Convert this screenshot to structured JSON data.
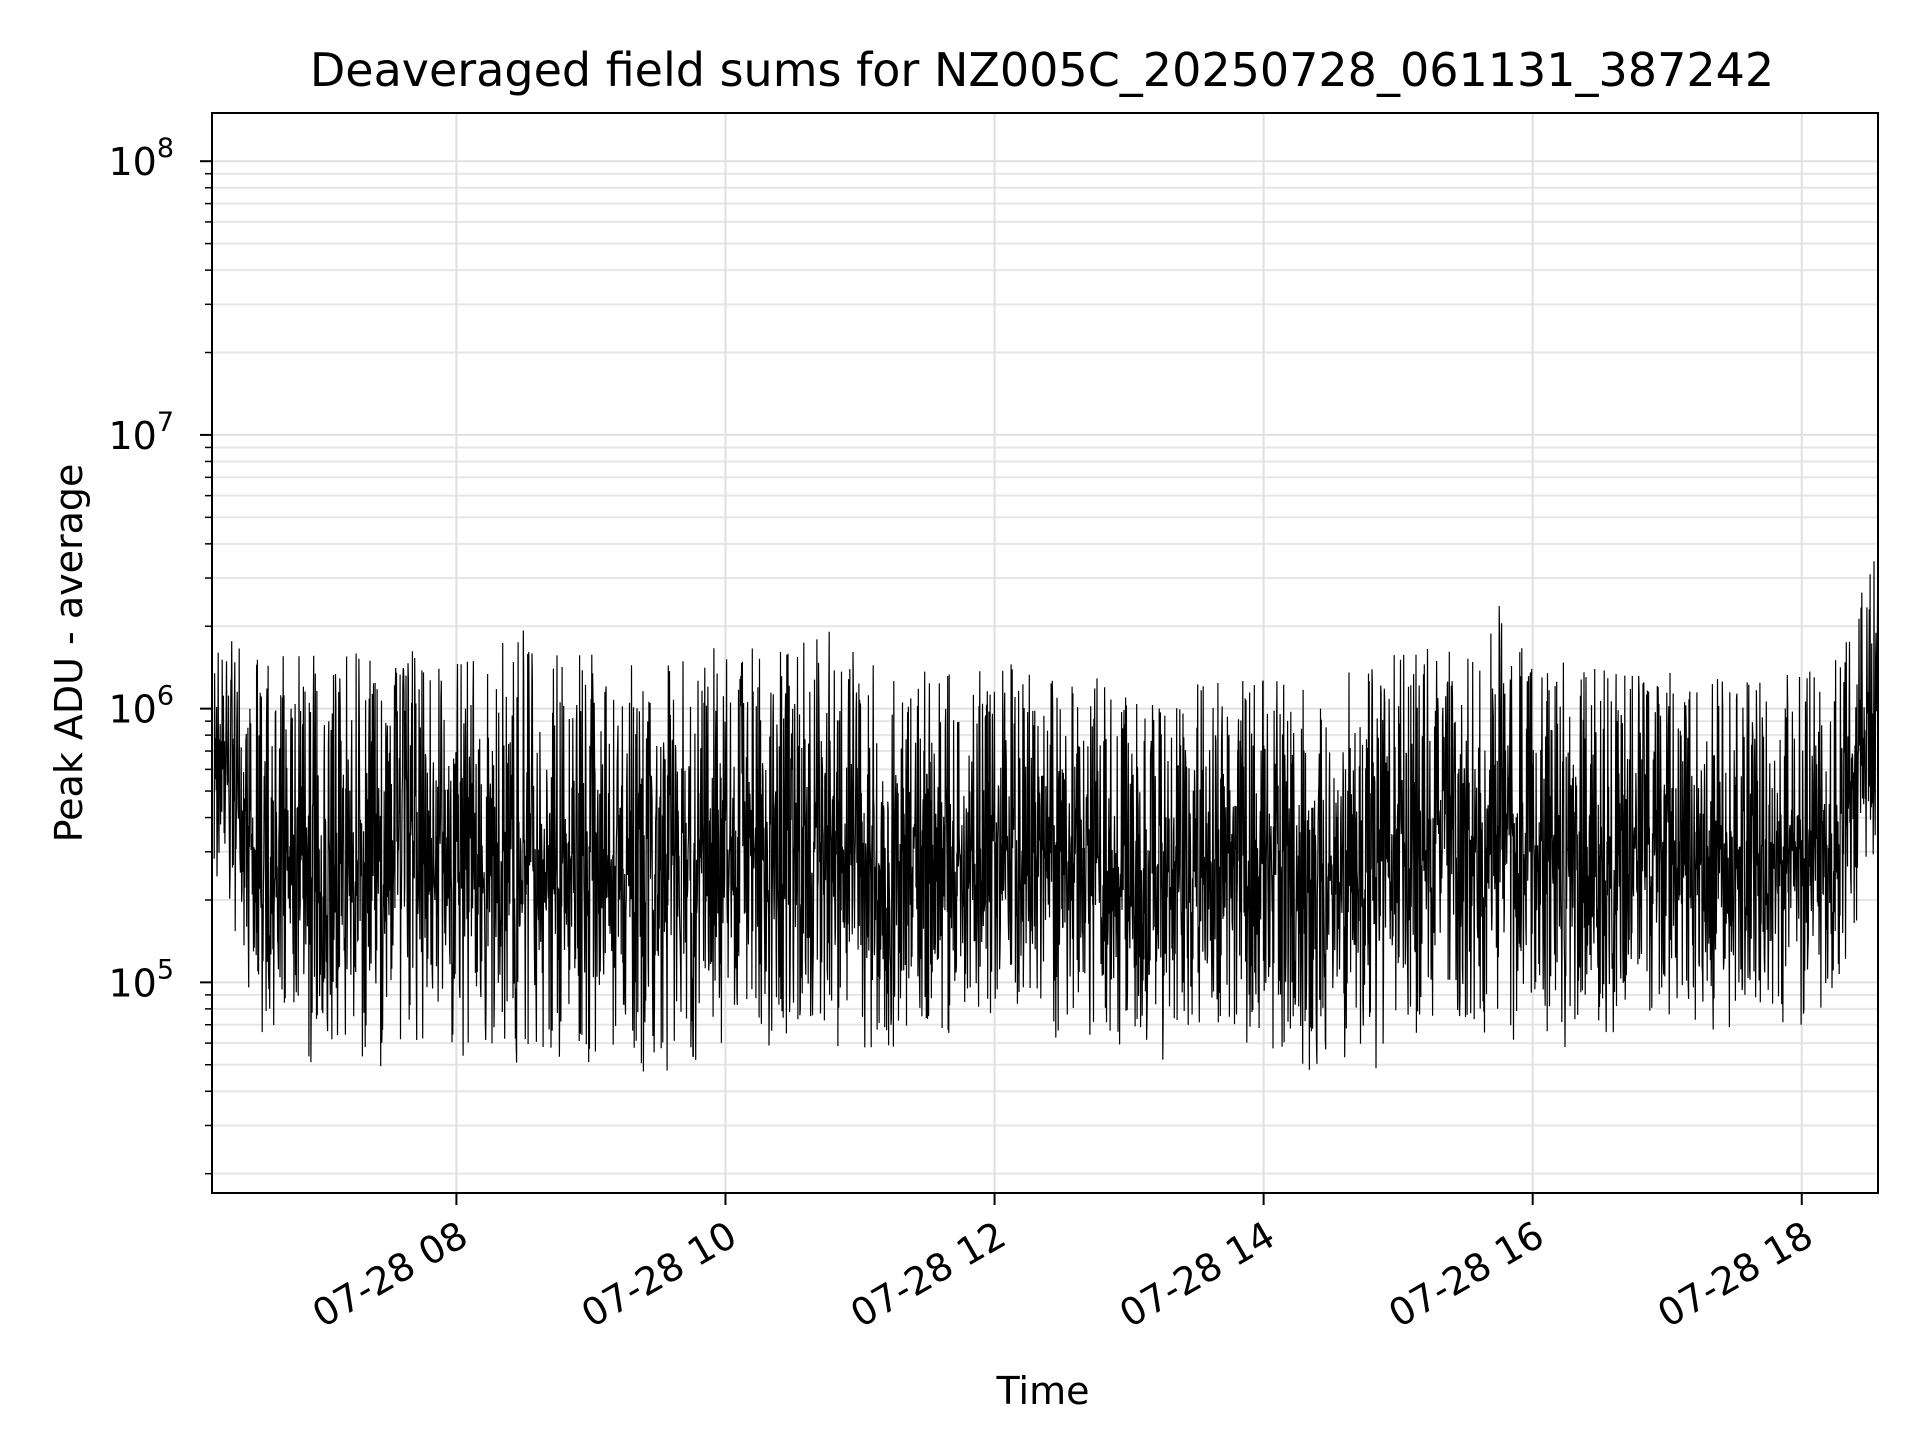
{
  "chart_data": {
    "type": "line",
    "title": "Deaveraged field sums for NZ005C_20250728_061131_387242",
    "xlabel": "Time",
    "ylabel": "Peak ADU - average",
    "yscale": "log",
    "ylim": [
      17000,
      150000000
    ],
    "xlim": [
      "2025-07-28 06:11",
      "2025-07-28 18:34"
    ],
    "grid": true,
    "line_color": "#000000",
    "x_ticks": [
      {
        "value": "2025-07-28 08:00",
        "label": "07-28 08"
      },
      {
        "value": "2025-07-28 10:00",
        "label": "07-28 10"
      },
      {
        "value": "2025-07-28 12:00",
        "label": "07-28 12"
      },
      {
        "value": "2025-07-28 14:00",
        "label": "07-28 14"
      },
      {
        "value": "2025-07-28 16:00",
        "label": "07-28 16"
      },
      {
        "value": "2025-07-28 18:00",
        "label": "07-28 18"
      }
    ],
    "y_ticks": [
      {
        "value": 100000,
        "base": "10",
        "exp": "5"
      },
      {
        "value": 1000000,
        "base": "10",
        "exp": "6"
      },
      {
        "value": 10000000,
        "base": "10",
        "exp": "7"
      },
      {
        "value": 100000000,
        "base": "10",
        "exp": "8"
      }
    ],
    "series": [
      {
        "x": [
          "2025-07-28 06:12",
          "2025-07-28 06:30",
          "2025-07-28 06:45",
          "2025-07-28 07:00",
          "2025-07-28 07:15",
          "2025-07-28 07:30",
          "2025-07-28 07:45",
          "2025-07-28 08:00",
          "2025-07-28 08:15",
          "2025-07-28 08:30",
          "2025-07-28 08:45",
          "2025-07-28 09:00",
          "2025-07-28 09:15",
          "2025-07-28 09:30",
          "2025-07-28 09:45",
          "2025-07-28 10:00",
          "2025-07-28 10:15",
          "2025-07-28 10:30",
          "2025-07-28 10:45",
          "2025-07-28 11:00",
          "2025-07-28 11:15",
          "2025-07-28 11:30",
          "2025-07-28 11:45",
          "2025-07-28 12:00",
          "2025-07-28 12:15",
          "2025-07-28 12:30",
          "2025-07-28 12:45",
          "2025-07-28 13:00",
          "2025-07-28 13:15",
          "2025-07-28 13:30",
          "2025-07-28 13:45",
          "2025-07-28 14:00",
          "2025-07-28 14:15",
          "2025-07-28 14:30",
          "2025-07-28 14:45",
          "2025-07-28 15:00",
          "2025-07-28 15:15",
          "2025-07-28 15:30",
          "2025-07-28 15:45",
          "2025-07-28 16:00",
          "2025-07-28 16:15",
          "2025-07-28 16:30",
          "2025-07-28 16:45",
          "2025-07-28 17:00",
          "2025-07-28 17:15",
          "2025-07-28 17:30",
          "2025-07-28 17:45",
          "2025-07-28 18:00",
          "2025-07-28 18:15",
          "2025-07-28 18:30"
        ],
        "y_min": [
          200000,
          60000,
          50000,
          50000,
          45000,
          45000,
          45000,
          55000,
          45000,
          40000,
          45000,
          50000,
          45000,
          40000,
          45000,
          55000,
          55000,
          50000,
          55000,
          45000,
          45000,
          55000,
          60000,
          65000,
          60000,
          55000,
          50000,
          45000,
          45000,
          50000,
          55000,
          50000,
          40000,
          35000,
          40000,
          55000,
          60000,
          60000,
          60000,
          55000,
          55000,
          60000,
          65000,
          70000,
          65000,
          65000,
          65000,
          60000,
          70000,
          250000
        ],
        "y_max": [
          2100000,
          1700000,
          1600000,
          1600000,
          1600000,
          1700000,
          1600000,
          1700000,
          1600000,
          2200000,
          1700000,
          1700000,
          1650000,
          1600000,
          1700000,
          1700000,
          1700000,
          1700000,
          2200000,
          1600000,
          1500000,
          1500000,
          1400000,
          1500000,
          1500000,
          1400000,
          1300000,
          1300000,
          1400000,
          1300000,
          1300000,
          1300000,
          1300000,
          1500000,
          1400000,
          1700000,
          1700000,
          1800000,
          2400000,
          1600000,
          1500000,
          1400000,
          1400000,
          1400000,
          1300000,
          1500000,
          1500000,
          1400000,
          1600000,
          3600000
        ]
      }
    ]
  }
}
